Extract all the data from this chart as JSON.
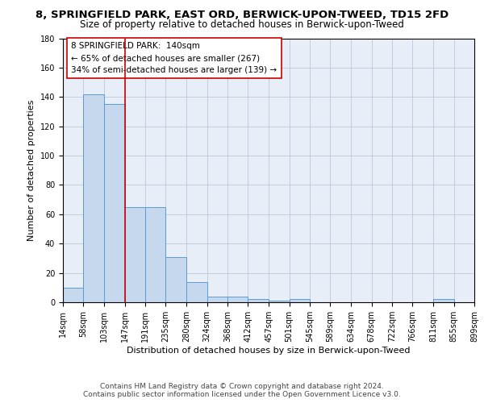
{
  "title1": "8, SPRINGFIELD PARK, EAST ORD, BERWICK-UPON-TWEED, TD15 2FD",
  "title2": "Size of property relative to detached houses in Berwick-upon-Tweed",
  "xlabel": "Distribution of detached houses by size in Berwick-upon-Tweed",
  "ylabel": "Number of detached properties",
  "footer1": "Contains HM Land Registry data © Crown copyright and database right 2024.",
  "footer2": "Contains public sector information licensed under the Open Government Licence v3.0.",
  "annotation_line1": "8 SPRINGFIELD PARK:  140sqm",
  "annotation_line2": "← 65% of detached houses are smaller (267)",
  "annotation_line3": "34% of semi-detached houses are larger (139) →",
  "bar_color": "#c5d8ed",
  "bar_edge_color": "#5b9bd5",
  "grid_color": "#c0c8d8",
  "background_color": "#e8eef7",
  "vline_color": "#cc0000",
  "vline_x": 147,
  "bin_edges": [
    14,
    58,
    103,
    147,
    191,
    235,
    280,
    324,
    368,
    412,
    457,
    501,
    545,
    589,
    634,
    678,
    722,
    766,
    811,
    855,
    899
  ],
  "bin_counts": [
    10,
    142,
    135,
    65,
    65,
    31,
    14,
    4,
    4,
    2,
    1,
    2,
    0,
    0,
    0,
    0,
    0,
    0,
    2,
    0
  ],
  "ylim": [
    0,
    180
  ],
  "yticks": [
    0,
    20,
    40,
    60,
    80,
    100,
    120,
    140,
    160,
    180
  ],
  "title1_fontsize": 9.5,
  "title2_fontsize": 8.5,
  "xlabel_fontsize": 8,
  "ylabel_fontsize": 8,
  "tick_fontsize": 7,
  "footer_fontsize": 6.5,
  "annotation_fontsize": 7.5
}
